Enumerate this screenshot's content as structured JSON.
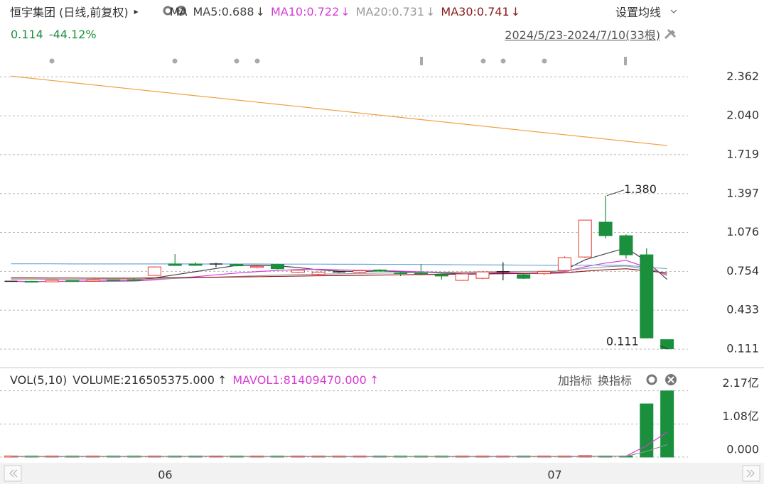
{
  "header": {
    "title": "恒宇集团 (日线,前复权)",
    "expand": "▸",
    "ma": "MA",
    "settings": "设置均线",
    "close": "0.114",
    "change": "-44.12%",
    "range": "2024/5/23-2024/7/10(33根)",
    "add_indicator": "加指标",
    "switch_indicator": "换指标"
  },
  "chart_data": [
    {
      "type": "candlestick",
      "categories": [
        null,
        null,
        null,
        null,
        null,
        null,
        null,
        "06",
        null,
        null,
        null,
        null,
        null,
        null,
        null,
        null,
        null,
        null,
        null,
        null,
        null,
        null,
        null,
        null,
        null,
        null,
        "07",
        null,
        null,
        null,
        null,
        null,
        null
      ],
      "open": [
        0.672,
        0.672,
        0.668,
        0.678,
        0.672,
        0.682,
        0.684,
        0.721,
        0.815,
        0.815,
        0.815,
        0.812,
        0.786,
        0.812,
        0.746,
        0.73,
        0.75,
        0.748,
        0.766,
        0.742,
        0.74,
        0.728,
        0.68,
        0.697,
        0.752,
        0.727,
        0.735,
        0.762,
        0.873,
        1.161,
        1.049,
        0.891,
        0.19
      ],
      "high": [
        0.675,
        0.676,
        0.684,
        0.68,
        0.686,
        0.686,
        0.7,
        0.795,
        0.897,
        0.83,
        0.825,
        0.818,
        0.8,
        0.818,
        0.77,
        0.752,
        0.756,
        0.764,
        0.772,
        0.75,
        0.815,
        0.735,
        0.738,
        0.755,
        0.83,
        0.735,
        0.76,
        0.878,
        1.18,
        1.38,
        1.06,
        0.944,
        0.19
      ],
      "low": [
        0.668,
        0.662,
        0.665,
        0.668,
        0.67,
        0.674,
        0.676,
        0.718,
        0.8,
        0.8,
        0.79,
        0.795,
        0.78,
        0.77,
        0.74,
        0.72,
        0.742,
        0.742,
        0.752,
        0.715,
        0.72,
        0.685,
        0.676,
        0.69,
        0.68,
        0.692,
        0.725,
        0.755,
        0.865,
        1.026,
        0.86,
        0.2,
        0.111
      ],
      "close": [
        0.672,
        0.665,
        0.68,
        0.67,
        0.682,
        0.676,
        0.678,
        0.791,
        0.803,
        0.804,
        0.815,
        0.8,
        0.796,
        0.776,
        0.764,
        0.748,
        0.75,
        0.76,
        0.756,
        0.738,
        0.735,
        0.716,
        0.733,
        0.75,
        0.752,
        0.697,
        0.752,
        0.868,
        1.178,
        1.049,
        0.891,
        0.204,
        0.114
      ],
      "up_color": "#e8382f",
      "down_color": "#1a8f3c",
      "doji_color": "#222222",
      "ylim": [
        0.035,
        2.44
      ],
      "yticks": [
        0.111,
        0.433,
        0.754,
        1.076,
        1.397,
        1.719,
        {
          "value": 2.04,
          "label": "2.040"
        },
        2.362
      ],
      "grid": true,
      "series": [
        {
          "name": "MA5:0.688",
          "trend": "↓",
          "color": "#444444",
          "values": [
            0.672,
            0.67,
            0.671,
            0.672,
            0.674,
            0.675,
            0.677,
            0.7,
            0.726,
            0.752,
            0.778,
            0.803,
            0.804,
            0.8,
            0.786,
            0.767,
            0.756,
            0.752,
            0.758,
            0.752,
            0.747,
            0.74,
            0.735,
            0.734,
            0.74,
            0.737,
            0.745,
            0.765,
            0.85,
            0.9,
            0.948,
            0.838,
            0.688
          ]
        },
        {
          "name": "MA10:0.722",
          "trend": "↓",
          "color": "#d63cd6",
          "values": [
            0.672,
            0.671,
            0.671,
            0.672,
            0.672,
            0.673,
            0.674,
            0.684,
            0.698,
            0.71,
            0.726,
            0.74,
            0.752,
            0.762,
            0.769,
            0.771,
            0.767,
            0.763,
            0.762,
            0.756,
            0.75,
            0.747,
            0.745,
            0.744,
            0.745,
            0.74,
            0.741,
            0.751,
            0.793,
            0.823,
            0.845,
            0.787,
            0.722
          ]
        },
        {
          "name": "MA20:0.731",
          "trend": "↓",
          "color": "#9a9a9a",
          "values": [
            0.69,
            0.69,
            0.689,
            0.688,
            0.688,
            0.688,
            0.688,
            0.691,
            0.696,
            0.701,
            0.706,
            0.712,
            0.718,
            0.724,
            0.728,
            0.731,
            0.734,
            0.737,
            0.74,
            0.742,
            0.745,
            0.747,
            0.748,
            0.75,
            0.752,
            0.754,
            0.755,
            0.757,
            0.778,
            0.792,
            0.799,
            0.772,
            0.731
          ]
        },
        {
          "name": "MA30:0.741",
          "trend": "↓",
          "color": "#8b1a1a",
          "values": [
            0.7,
            0.7,
            0.699,
            0.699,
            0.698,
            0.698,
            0.698,
            0.7,
            0.702,
            0.704,
            0.706,
            0.708,
            0.71,
            0.713,
            0.715,
            0.718,
            0.72,
            0.722,
            0.724,
            0.726,
            0.728,
            0.73,
            0.731,
            0.733,
            0.735,
            0.737,
            0.738,
            0.742,
            0.756,
            0.768,
            0.776,
            0.759,
            0.741
          ]
        },
        {
          "color": "#f0a040",
          "values": [
            2.368,
            2.35,
            2.332,
            2.314,
            2.296,
            2.278,
            2.26,
            2.242,
            2.224,
            2.206,
            2.189,
            2.171,
            2.153,
            2.135,
            2.117,
            2.099,
            2.081,
            2.063,
            2.045,
            2.027,
            2.009,
            1.991,
            1.973,
            1.955,
            1.937,
            1.919,
            1.901,
            1.884,
            1.866,
            1.848,
            1.83,
            1.812,
            1.794
          ]
        },
        {
          "color": "#6fa8dc",
          "values": [
            0.817,
            0.817,
            0.817,
            0.816,
            0.816,
            0.816,
            0.816,
            0.816,
            0.816,
            0.815,
            0.815,
            0.815,
            0.815,
            0.814,
            0.814,
            0.814,
            0.813,
            0.813,
            0.812,
            0.812,
            0.811,
            0.81,
            0.809,
            0.808,
            0.807,
            0.806,
            0.805,
            0.804,
            0.806,
            0.806,
            0.804,
            0.79,
            0.776
          ]
        }
      ],
      "annotations": [
        {
          "x": 29,
          "value": 1.38,
          "label": "1.380"
        },
        {
          "x": 32,
          "value": 0.111,
          "label": "0.111"
        }
      ]
    },
    {
      "type": "bar",
      "title": "VOL(5,10)",
      "subtitle": "VOLUME:216505375.000",
      "subtitle_trend": "↑",
      "values": [
        2100000,
        1500000,
        1800000,
        1400000,
        1600000,
        1300000,
        1500000,
        3000000,
        3200000,
        2200000,
        1800000,
        1500000,
        1600000,
        2000000,
        1400000,
        1300000,
        1200000,
        1500000,
        1400000,
        1300000,
        1600000,
        1500000,
        2500000,
        1800000,
        1500000,
        1600000,
        1400000,
        2200000,
        4800000,
        3500000,
        2600000,
        174000000,
        216505375
      ],
      "ylim": [
        0,
        230000000
      ],
      "yticks": [
        {
          "value": 0,
          "label": "0.000"
        },
        {
          "value": 108000000,
          "label": "1.08亿"
        },
        {
          "value": 217000000,
          "label": "2.17亿"
        }
      ],
      "grid": true,
      "series": [
        {
          "name": "MAVOL1:81409470.000",
          "trend": "↑",
          "color": "#d63cd6",
          "values": [
            1700000,
            1700000,
            1700000,
            1700000,
            1700000,
            1500000,
            1500000,
            1800000,
            2100000,
            2300000,
            2300000,
            2300000,
            2000000,
            1800000,
            1700000,
            1600000,
            1500000,
            1500000,
            1400000,
            1300000,
            1400000,
            1500000,
            1700000,
            1700000,
            1800000,
            1800000,
            1700000,
            1700000,
            2400000,
            2700000,
            3000000,
            37400000,
            81409470
          ]
        },
        {
          "color": "#8a9a8a",
          "values": [
            1800000,
            1800000,
            1800000,
            1800000,
            1700000,
            1700000,
            1700000,
            1700000,
            1800000,
            1900000,
            2000000,
            2000000,
            2000000,
            2000000,
            1900000,
            1800000,
            1700000,
            1600000,
            1600000,
            1500000,
            1500000,
            1500000,
            1600000,
            1600000,
            1600000,
            1600000,
            1600000,
            1700000,
            2100000,
            2200000,
            2300000,
            18800000,
            40500000
          ]
        }
      ]
    }
  ]
}
